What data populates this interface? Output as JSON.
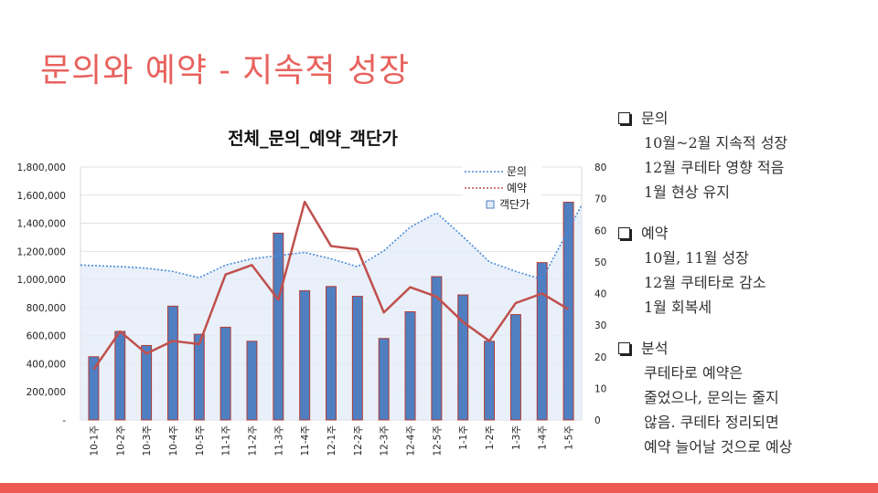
{
  "slide": {
    "title": "문의와 예약 - 지속적 성장"
  },
  "chart_data": {
    "type": "bar+line",
    "title": "전체_문의_예약_객단가",
    "categories": [
      "10-1주",
      "10-2주",
      "10-3주",
      "10-4주",
      "10-5주",
      "11-1주",
      "11-2주",
      "11-3주",
      "11-4주",
      "12-1주",
      "12-2주",
      "12-3주",
      "12-4주",
      "12-5주",
      "1-1주",
      "1-2주",
      "1-3주",
      "1-4주",
      "1-5주"
    ],
    "left_axis": {
      "ylim": [
        0,
        1800000
      ],
      "ticks": [
        "-",
        "200,000",
        "400,000",
        "600,000",
        "800,000",
        "1,000,000",
        "1,200,000",
        "1,400,000",
        "1,600,000",
        "1,800,000"
      ]
    },
    "right_axis": {
      "ylim": [
        0,
        80
      ],
      "ticks": [
        "0",
        "10",
        "20",
        "30",
        "40",
        "50",
        "60",
        "70",
        "80"
      ]
    },
    "series": [
      {
        "name": "객단가",
        "kind": "bar",
        "axis": "left",
        "color": "#4f7fc1",
        "values": [
          450000,
          630000,
          530000,
          810000,
          610000,
          660000,
          560000,
          1330000,
          920000,
          950000,
          880000,
          580000,
          770000,
          1020000,
          890000,
          560000,
          750000,
          1120000,
          1550000
        ]
      },
      {
        "name": "문의",
        "kind": "dotted-area",
        "axis": "right",
        "color": "#4a8bdc",
        "values": [
          49,
          48.5,
          48,
          47,
          45,
          49,
          51,
          52,
          53,
          51,
          48.5,
          53.5,
          61,
          65.5,
          58,
          50,
          47,
          44.5,
          68
        ]
      },
      {
        "name": "예약",
        "kind": "line",
        "axis": "right",
        "color": "#c0504d",
        "values": [
          16,
          28,
          21,
          25,
          24,
          46,
          49,
          38,
          69,
          55,
          54,
          34,
          42,
          39,
          31,
          25,
          37,
          40,
          35
        ]
      }
    ],
    "legend": [
      "문의",
      "예약",
      "객단가"
    ],
    "legend_position": "top-right",
    "grid": true
  },
  "notes": [
    {
      "heading": "문의",
      "lines": [
        "10월~2월 지속적 성장",
        "12월 쿠테타 영향 적음",
        "1월 현상 유지"
      ]
    },
    {
      "heading": "예약",
      "lines": [
        "10월, 11월 성장",
        "12월 쿠테타로 감소",
        "1월 회복세"
      ]
    },
    {
      "heading": "분석",
      "lines": [
        "쿠테타로 예약은",
        "줄었으나, 문의는 줄지",
        "않음. 쿠테타 정리되면",
        "예약 늘어날 것으로 예상"
      ]
    }
  ],
  "colors": {
    "title": "#e8625e",
    "bottom_bar": "#ee5a53"
  }
}
